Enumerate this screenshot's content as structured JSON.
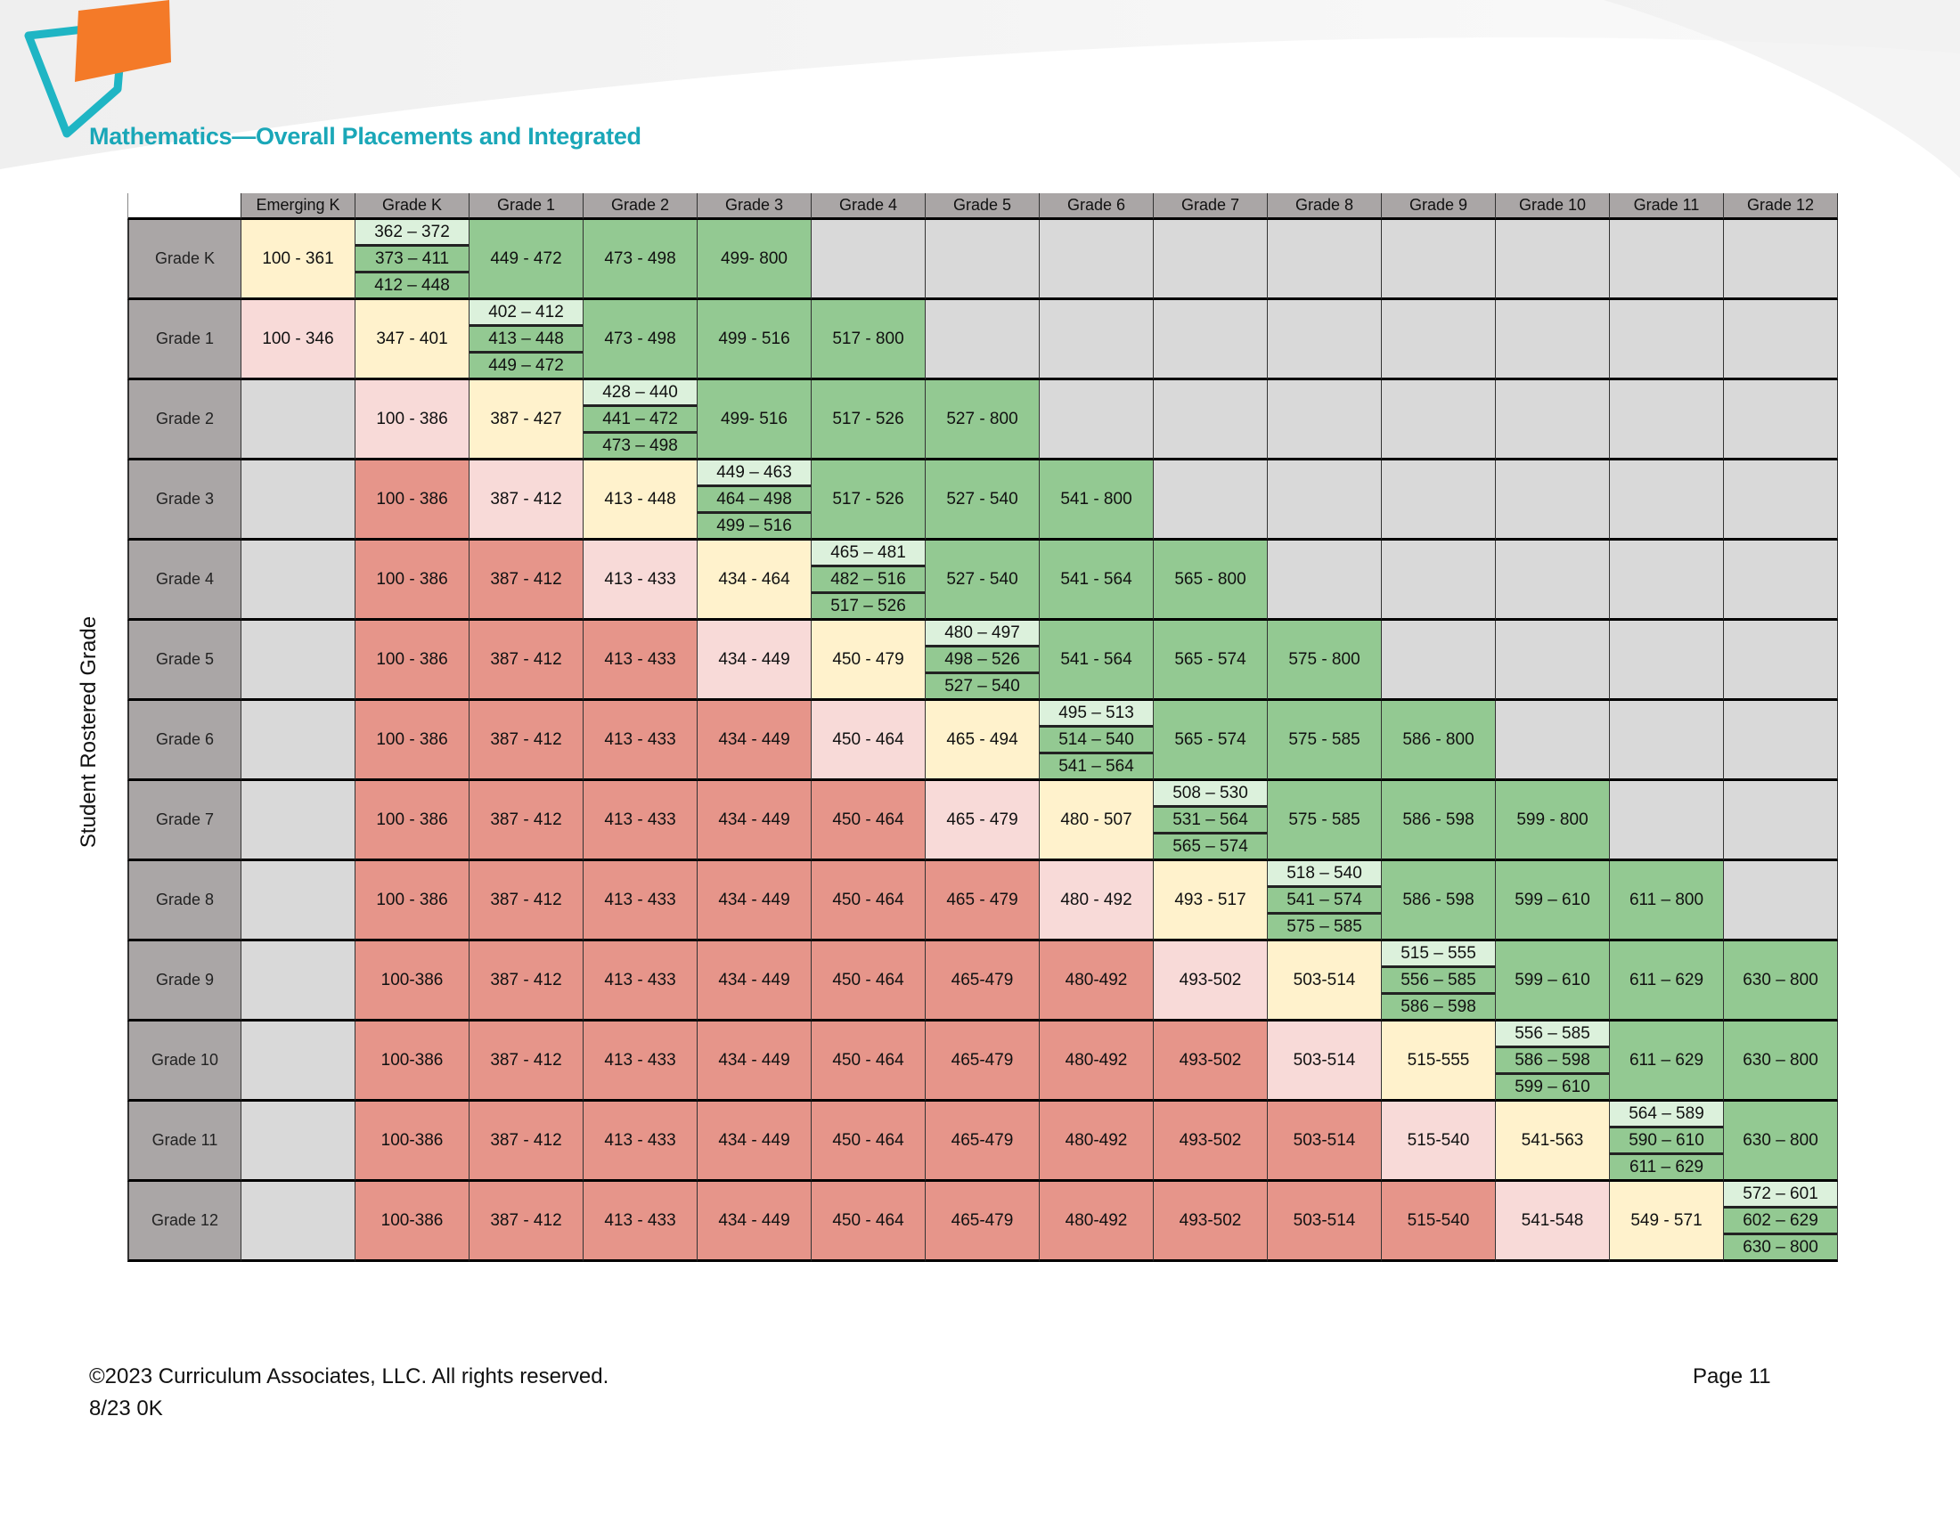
{
  "title": "Mathematics—Overall Placements and Integrated",
  "side_label": "Student Rostered Grade",
  "colors": {
    "e": "#d9d9d9",
    "r": "#e6958a",
    "p": "#f8dad8",
    "y": "#fff2cc",
    "G": "#93c992",
    "light_green": "#dcf1dc",
    "header": "#aaa6a6",
    "title": "#1aa7b8",
    "logo_orange": "#f47a28",
    "logo_teal": "#1fb5c4"
  },
  "columns": [
    "Emerging K",
    "Grade K",
    "Grade 1",
    "Grade 2",
    "Grade 3",
    "Grade 4",
    "Grade 5",
    "Grade 6",
    "Grade 7",
    "Grade 8",
    "Grade 9",
    "Grade 10",
    "Grade 11",
    "Grade 12"
  ],
  "rows": [
    {
      "grade": "Grade K",
      "cells": [
        [
          "y",
          "100 - 361"
        ],
        [
          "split",
          [
            "362 – 372",
            "373 – 411",
            "412 – 448"
          ]
        ],
        [
          "G",
          "449 - 472"
        ],
        [
          "G",
          "473 - 498"
        ],
        [
          "G",
          "499- 800"
        ],
        [
          "e"
        ],
        [
          "e"
        ],
        [
          "e"
        ],
        [
          "e"
        ],
        [
          "e"
        ],
        [
          "e"
        ],
        [
          "e"
        ],
        [
          "e"
        ],
        [
          "e"
        ]
      ]
    },
    {
      "grade": "Grade 1",
      "cells": [
        [
          "p",
          "100 - 346"
        ],
        [
          "y",
          "347 - 401"
        ],
        [
          "split",
          [
            "402 – 412",
            "413 – 448",
            "449 – 472"
          ]
        ],
        [
          "G",
          "473 - 498"
        ],
        [
          "G",
          "499 - 516"
        ],
        [
          "G",
          "517 - 800"
        ],
        [
          "e"
        ],
        [
          "e"
        ],
        [
          "e"
        ],
        [
          "e"
        ],
        [
          "e"
        ],
        [
          "e"
        ],
        [
          "e"
        ],
        [
          "e"
        ]
      ]
    },
    {
      "grade": "Grade 2",
      "cells": [
        [
          "e"
        ],
        [
          "p",
          "100 - 386"
        ],
        [
          "y",
          "387 - 427"
        ],
        [
          "split",
          [
            "428 – 440",
            "441 – 472",
            "473 – 498"
          ]
        ],
        [
          "G",
          "499- 516"
        ],
        [
          "G",
          "517 - 526"
        ],
        [
          "G",
          "527 - 800"
        ],
        [
          "e"
        ],
        [
          "e"
        ],
        [
          "e"
        ],
        [
          "e"
        ],
        [
          "e"
        ],
        [
          "e"
        ],
        [
          "e"
        ]
      ]
    },
    {
      "grade": "Grade 3",
      "cells": [
        [
          "e"
        ],
        [
          "r",
          "100 - 386"
        ],
        [
          "p",
          "387 - 412"
        ],
        [
          "y",
          "413 - 448"
        ],
        [
          "split",
          [
            "449 – 463",
            "464 – 498",
            "499 – 516"
          ]
        ],
        [
          "G",
          "517 - 526"
        ],
        [
          "G",
          "527 - 540"
        ],
        [
          "G",
          "541 - 800"
        ],
        [
          "e"
        ],
        [
          "e"
        ],
        [
          "e"
        ],
        [
          "e"
        ],
        [
          "e"
        ],
        [
          "e"
        ]
      ]
    },
    {
      "grade": "Grade 4",
      "cells": [
        [
          "e"
        ],
        [
          "r",
          "100 - 386"
        ],
        [
          "r",
          "387 - 412"
        ],
        [
          "p",
          "413 - 433"
        ],
        [
          "y",
          "434 - 464"
        ],
        [
          "split",
          [
            "465 – 481",
            "482 – 516",
            "517 – 526"
          ]
        ],
        [
          "G",
          "527 - 540"
        ],
        [
          "G",
          "541 - 564"
        ],
        [
          "G",
          "565 - 800"
        ],
        [
          "e"
        ],
        [
          "e"
        ],
        [
          "e"
        ],
        [
          "e"
        ],
        [
          "e"
        ]
      ]
    },
    {
      "grade": "Grade 5",
      "cells": [
        [
          "e"
        ],
        [
          "r",
          "100 - 386"
        ],
        [
          "r",
          "387 - 412"
        ],
        [
          "r",
          "413 - 433"
        ],
        [
          "p",
          "434 - 449"
        ],
        [
          "y",
          "450 - 479"
        ],
        [
          "split",
          [
            "480 – 497",
            "498 – 526",
            "527 – 540"
          ]
        ],
        [
          "G",
          "541 - 564"
        ],
        [
          "G",
          "565 - 574"
        ],
        [
          "G",
          "575 - 800"
        ],
        [
          "e"
        ],
        [
          "e"
        ],
        [
          "e"
        ],
        [
          "e"
        ]
      ]
    },
    {
      "grade": "Grade 6",
      "cells": [
        [
          "e"
        ],
        [
          "r",
          "100 - 386"
        ],
        [
          "r",
          "387 - 412"
        ],
        [
          "r",
          "413 - 433"
        ],
        [
          "r",
          "434 - 449"
        ],
        [
          "p",
          "450 - 464"
        ],
        [
          "y",
          "465 - 494"
        ],
        [
          "split",
          [
            "495 – 513",
            "514 – 540",
            "541 – 564"
          ]
        ],
        [
          "G",
          "565 - 574"
        ],
        [
          "G",
          "575 - 585"
        ],
        [
          "G",
          "586 - 800"
        ],
        [
          "e"
        ],
        [
          "e"
        ],
        [
          "e"
        ]
      ]
    },
    {
      "grade": "Grade 7",
      "cells": [
        [
          "e"
        ],
        [
          "r",
          "100 - 386"
        ],
        [
          "r",
          "387 - 412"
        ],
        [
          "r",
          "413 - 433"
        ],
        [
          "r",
          "434 - 449"
        ],
        [
          "r",
          "450 - 464"
        ],
        [
          "p",
          "465 - 479"
        ],
        [
          "y",
          "480 - 507"
        ],
        [
          "split",
          [
            "508 – 530",
            "531 – 564",
            "565 – 574"
          ]
        ],
        [
          "G",
          "575 - 585"
        ],
        [
          "G",
          "586 - 598"
        ],
        [
          "G",
          "599 - 800"
        ],
        [
          "e"
        ],
        [
          "e"
        ]
      ]
    },
    {
      "grade": "Grade 8",
      "cells": [
        [
          "e"
        ],
        [
          "r",
          "100 - 386"
        ],
        [
          "r",
          "387 - 412"
        ],
        [
          "r",
          "413 - 433"
        ],
        [
          "r",
          "434 - 449"
        ],
        [
          "r",
          "450 - 464"
        ],
        [
          "r",
          "465 - 479"
        ],
        [
          "p",
          "480 - 492"
        ],
        [
          "y",
          "493 - 517"
        ],
        [
          "split",
          [
            "518 – 540",
            "541 – 574",
            "575 – 585"
          ]
        ],
        [
          "G",
          "586 - 598"
        ],
        [
          "G",
          "599 – 610"
        ],
        [
          "G",
          "611 – 800"
        ],
        [
          "e"
        ]
      ]
    },
    {
      "grade": "Grade 9",
      "cells": [
        [
          "e"
        ],
        [
          "r",
          "100-386"
        ],
        [
          "r",
          "387 - 412"
        ],
        [
          "r",
          "413 - 433"
        ],
        [
          "r",
          "434 - 449"
        ],
        [
          "r",
          "450 - 464"
        ],
        [
          "r",
          "465-479"
        ],
        [
          "r",
          "480-492"
        ],
        [
          "p",
          "493-502"
        ],
        [
          "y",
          "503-514"
        ],
        [
          "split",
          [
            "515 – 555",
            "556 – 585",
            "586 – 598"
          ]
        ],
        [
          "G",
          "599 – 610"
        ],
        [
          "G",
          "611 – 629"
        ],
        [
          "G",
          "630 – 800"
        ]
      ]
    },
    {
      "grade": "Grade 10",
      "cells": [
        [
          "e"
        ],
        [
          "r",
          "100-386"
        ],
        [
          "r",
          "387 - 412"
        ],
        [
          "r",
          "413 - 433"
        ],
        [
          "r",
          "434 - 449"
        ],
        [
          "r",
          "450 - 464"
        ],
        [
          "r",
          "465-479"
        ],
        [
          "r",
          "480-492"
        ],
        [
          "r",
          "493-502"
        ],
        [
          "p",
          "503-514"
        ],
        [
          "y",
          "515-555"
        ],
        [
          "split",
          [
            "556 – 585",
            "586 – 598",
            "599 – 610"
          ]
        ],
        [
          "G",
          "611 – 629"
        ],
        [
          "G",
          "630 – 800"
        ]
      ]
    },
    {
      "grade": "Grade 11",
      "cells": [
        [
          "e"
        ],
        [
          "r",
          "100-386"
        ],
        [
          "r",
          "387 - 412"
        ],
        [
          "r",
          "413 - 433"
        ],
        [
          "r",
          "434 - 449"
        ],
        [
          "r",
          "450 - 464"
        ],
        [
          "r",
          "465-479"
        ],
        [
          "r",
          "480-492"
        ],
        [
          "r",
          "493-502"
        ],
        [
          "r",
          "503-514"
        ],
        [
          "p",
          "515-540"
        ],
        [
          "y",
          "541-563"
        ],
        [
          "split",
          [
            "564 – 589",
            "590 – 610",
            "611 – 629"
          ]
        ],
        [
          "G",
          "630 – 800"
        ]
      ]
    },
    {
      "grade": "Grade 12",
      "cells": [
        [
          "e"
        ],
        [
          "r",
          "100-386"
        ],
        [
          "r",
          "387 - 412"
        ],
        [
          "r",
          "413 - 433"
        ],
        [
          "r",
          "434 - 449"
        ],
        [
          "r",
          "450 - 464"
        ],
        [
          "r",
          "465-479"
        ],
        [
          "r",
          "480-492"
        ],
        [
          "r",
          "493-502"
        ],
        [
          "r",
          "503-514"
        ],
        [
          "r",
          "515-540"
        ],
        [
          "p",
          "541-548"
        ],
        [
          "y",
          "549 - 571"
        ],
        [
          "split",
          [
            "572 – 601",
            "602 – 629",
            "630 – 800"
          ]
        ]
      ]
    }
  ],
  "footer": {
    "copyright": "©2023 Curriculum Associates, LLC. All rights reserved.",
    "code": "8/23 0K",
    "page": "Page 11"
  }
}
